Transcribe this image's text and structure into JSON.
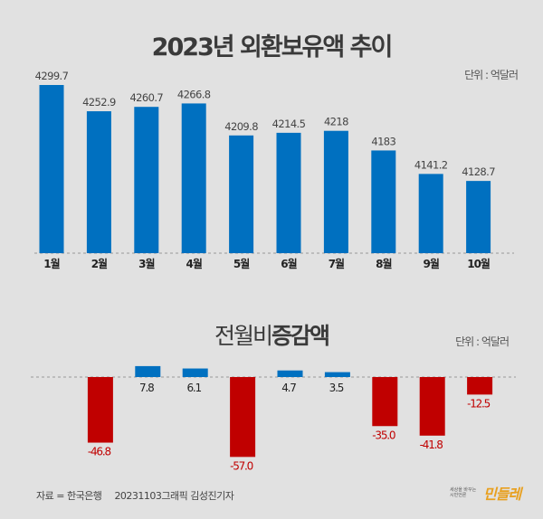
{
  "chart_data": [
    {
      "type": "bar",
      "title": "2023년 외환보유액 추이",
      "unit_label": "단위 : 억달러",
      "categories": [
        "1월",
        "2월",
        "3월",
        "4월",
        "5월",
        "6월",
        "7월",
        "8월",
        "9월",
        "10월"
      ],
      "values": [
        4299.7,
        4252.9,
        4260.7,
        4266.8,
        4209.8,
        4214.5,
        4218,
        4183,
        4141.2,
        4128.7
      ],
      "value_labels": [
        "4299.7",
        "4252.9",
        "4260.7",
        "4266.8",
        "4209.8",
        "4214.5",
        "4218",
        "4183",
        "4141.2",
        "4128.7"
      ],
      "ylim": [
        4000,
        4310
      ],
      "grid": false,
      "colors": {
        "bar": "#0070c0"
      }
    },
    {
      "type": "bar",
      "title_plain": "전월비",
      "title_bold": "증감액",
      "unit_label": "단위 : 억달러",
      "categories": [
        "1월",
        "2월",
        "3월",
        "4월",
        "5월",
        "6월",
        "7월",
        "8월",
        "9월",
        "10월"
      ],
      "values": [
        null,
        -46.8,
        7.8,
        6.1,
        -57.0,
        4.7,
        3.5,
        -35.0,
        -41.8,
        -12.5
      ],
      "value_labels": [
        "",
        "-46.8",
        "7.8",
        "6.1",
        "-57.0",
        "4.7",
        "3.5",
        "-35.0",
        "-41.8",
        "-12.5"
      ],
      "ylim": [
        -60,
        10
      ],
      "grid": false,
      "colors": {
        "positive": "#0070c0",
        "negative": "#c00000",
        "negative_label": "#c00000",
        "positive_label": "#222222"
      }
    }
  ],
  "footer": {
    "source": "자료 = 한국은행",
    "credit": "20231103그래픽 김성진기자"
  },
  "logo": {
    "small_text": "세상을 바꾸는 시민언론",
    "name": "민들레"
  }
}
